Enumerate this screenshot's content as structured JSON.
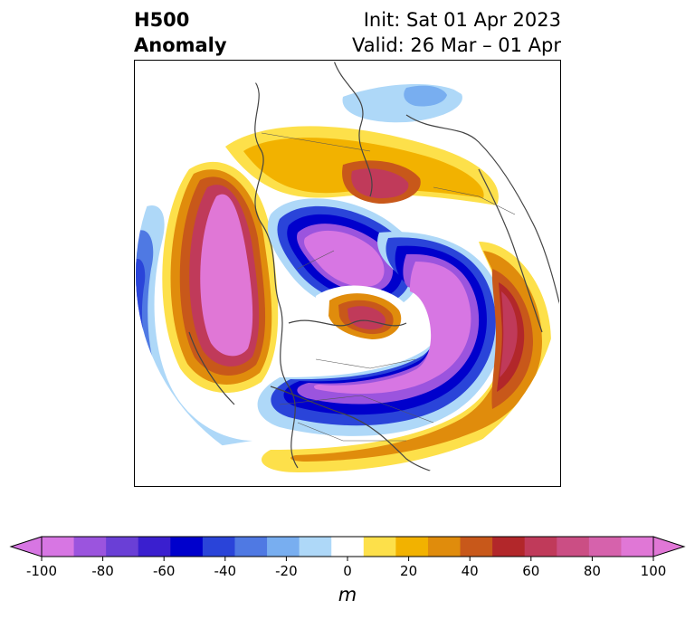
{
  "title": {
    "left_line1": "H500",
    "left_line2": "Anomaly",
    "right_line1": "Init: Sat 01 Apr 2023",
    "right_line2": "Valid: 26 Mar – 01 Apr"
  },
  "map": {
    "projection": "north-polar-stereographic",
    "variable": "500 hPa geopotential height anomaly",
    "features": [
      {
        "name": "strong negative anomaly over Canada / Great Lakes",
        "sign": "negative"
      },
      {
        "name": "strong negative anomaly over Arctic / northern Russia",
        "sign": "negative"
      },
      {
        "name": "strong negative anomaly over eastern Asia",
        "sign": "negative"
      },
      {
        "name": "strong positive anomaly over North Pacific / Aleutians",
        "sign": "positive"
      },
      {
        "name": "positive anomaly over Greenland",
        "sign": "positive"
      },
      {
        "name": "positive anomaly over northern Europe / Scandinavia",
        "sign": "positive"
      },
      {
        "name": "positive anomaly over western North Atlantic / Europe",
        "sign": "positive"
      }
    ]
  },
  "colorbar": {
    "label": "m",
    "ticks": [
      "-100",
      "-80",
      "-60",
      "-40",
      "-20",
      "0",
      "20",
      "40",
      "60",
      "80",
      "100"
    ],
    "levels": [
      -100,
      -90,
      -80,
      -70,
      -60,
      -50,
      -40,
      -30,
      -20,
      -10,
      10,
      20,
      30,
      40,
      50,
      60,
      70,
      80,
      90,
      100
    ],
    "colors": [
      "#d776e3",
      "#9b54de",
      "#6a3fd6",
      "#3a1fcf",
      "#0000cc",
      "#2a44d9",
      "#4f79e3",
      "#78aef0",
      "#aed8f8",
      "#ffffff",
      "#fde04a",
      "#f2b200",
      "#e08c0c",
      "#c8581a",
      "#b2272a",
      "#c03a5a",
      "#cb4e84",
      "#d662ac",
      "#e077d6"
    ],
    "extend_low_color": "#d776e3",
    "extend_high_color": "#e077d6"
  }
}
